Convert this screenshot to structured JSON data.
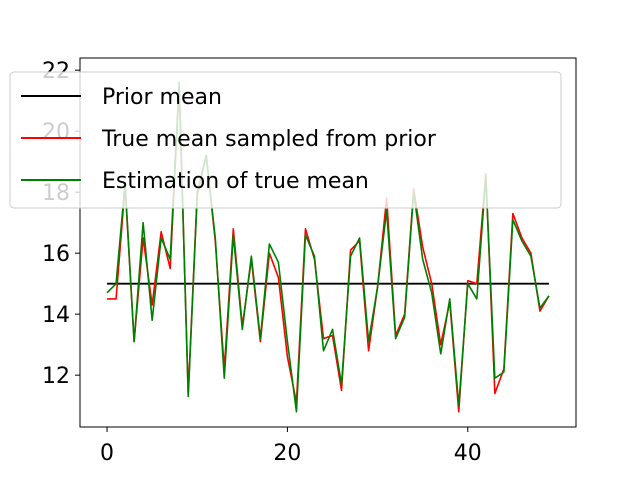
{
  "chart_data": {
    "type": "line",
    "x": [
      0,
      1,
      2,
      3,
      4,
      5,
      6,
      7,
      8,
      9,
      10,
      11,
      12,
      13,
      14,
      15,
      16,
      17,
      18,
      19,
      20,
      21,
      22,
      23,
      24,
      25,
      26,
      27,
      28,
      29,
      30,
      31,
      32,
      33,
      34,
      35,
      36,
      37,
      38,
      39,
      40,
      41,
      42,
      43,
      44,
      45,
      46,
      47,
      48,
      49
    ],
    "xlim": [
      -3,
      52
    ],
    "ylim": [
      10.3,
      22.4
    ],
    "xticks": [
      0,
      20,
      40
    ],
    "yticks": [
      12,
      14,
      16,
      18,
      20,
      22
    ],
    "legend_position": "upper-left",
    "grid": false,
    "series": [
      {
        "name": "Prior mean",
        "color": "#000000",
        "values": [
          15,
          15,
          15,
          15,
          15,
          15,
          15,
          15,
          15,
          15,
          15,
          15,
          15,
          15,
          15,
          15,
          15,
          15,
          15,
          15,
          15,
          15,
          15,
          15,
          15,
          15,
          15,
          15,
          15,
          15,
          15,
          15,
          15,
          15,
          15,
          15,
          15,
          15,
          15,
          15,
          15,
          15,
          15,
          15,
          15,
          15,
          15,
          15,
          15,
          15
        ]
      },
      {
        "name": "True mean sampled from prior",
        "color": "#ff0000",
        "values": [
          14.5,
          14.5,
          18.2,
          13.1,
          16.5,
          14.3,
          16.7,
          15.5,
          21.5,
          11.4,
          18.0,
          19.2,
          16.4,
          12.2,
          16.8,
          13.6,
          15.8,
          13.1,
          16.0,
          15.2,
          12.6,
          11.1,
          16.8,
          15.8,
          13.2,
          13.3,
          11.5,
          16.1,
          16.4,
          12.8,
          14.9,
          17.8,
          13.3,
          14.0,
          18.1,
          16.2,
          15.0,
          13.0,
          14.4,
          10.8,
          15.1,
          15.0,
          18.6,
          11.4,
          12.2,
          17.3,
          16.5,
          16.0,
          14.1,
          14.6
        ]
      },
      {
        "name": "Estimation of true mean",
        "color": "#008000",
        "values": [
          14.7,
          15.0,
          18.3,
          13.1,
          17.0,
          13.8,
          16.5,
          15.8,
          21.6,
          11.3,
          17.9,
          19.2,
          16.5,
          11.9,
          16.6,
          13.5,
          15.9,
          13.2,
          16.3,
          15.7,
          13.1,
          10.8,
          16.6,
          15.9,
          12.8,
          13.5,
          11.7,
          15.9,
          16.5,
          13.1,
          14.9,
          17.4,
          13.2,
          13.9,
          18.0,
          15.8,
          14.7,
          12.7,
          14.5,
          11.0,
          15.0,
          14.5,
          18.5,
          11.9,
          12.1,
          17.1,
          16.4,
          15.9,
          14.2,
          14.6
        ]
      }
    ]
  }
}
